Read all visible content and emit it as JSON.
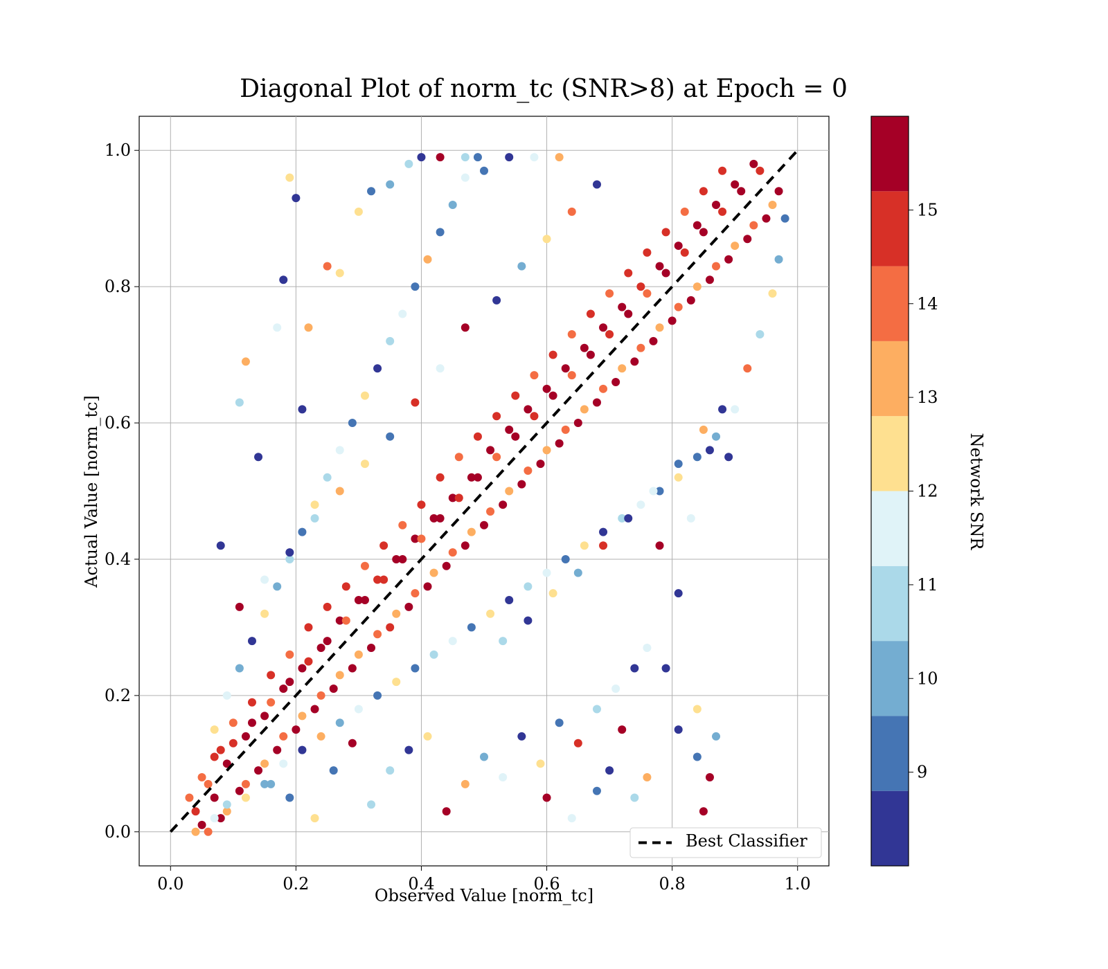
{
  "chart_data": {
    "type": "scatter",
    "title": "Diagonal Plot of norm_tc (SNR>8) at Epoch = 0",
    "xlabel": "Observed Value [norm_tc]",
    "ylabel": "Actual Value [norm_tc]",
    "xlim": [
      -0.05,
      1.05
    ],
    "ylim": [
      -0.05,
      1.05
    ],
    "xticks": [
      "0.0",
      "0.2",
      "0.4",
      "0.6",
      "0.8",
      "1.0"
    ],
    "yticks": [
      "0.0",
      "0.2",
      "0.4",
      "0.6",
      "0.8",
      "1.0"
    ],
    "xtick_values": [
      0.0,
      0.2,
      0.4,
      0.6,
      0.8,
      1.0
    ],
    "ytick_values": [
      0.0,
      0.2,
      0.4,
      0.6,
      0.8,
      1.0
    ],
    "grid": true,
    "legend": {
      "position": "bottom-right",
      "entries": [
        "Best Classifier"
      ]
    },
    "reference_line": {
      "label": "Best Classifier",
      "style": "dashed",
      "color": "#000000",
      "x": [
        0.0,
        1.0
      ],
      "y": [
        0.0,
        1.0
      ]
    },
    "colorbar": {
      "label": "Network SNR",
      "ticks": [
        "9",
        "10",
        "11",
        "12",
        "13",
        "14",
        "15"
      ],
      "tick_values": [
        9,
        10,
        11,
        12,
        13,
        14,
        15
      ],
      "range": [
        8,
        16
      ],
      "colors": [
        "#313695",
        "#4575b4",
        "#74add1",
        "#abd9e9",
        "#e0f3f8",
        "#fee090",
        "#fdae61",
        "#f46d43",
        "#d73027",
        "#a50026"
      ]
    },
    "points": [
      [
        0.05,
        0.01,
        15.9
      ],
      [
        0.07,
        0.05,
        15.7
      ],
      [
        0.09,
        0.1,
        15.5
      ],
      [
        0.12,
        0.14,
        15.6
      ],
      [
        0.15,
        0.17,
        15.8
      ],
      [
        0.18,
        0.21,
        15.4
      ],
      [
        0.21,
        0.24,
        15.9
      ],
      [
        0.24,
        0.27,
        15.2
      ],
      [
        0.27,
        0.31,
        15.7
      ],
      [
        0.3,
        0.34,
        15.8
      ],
      [
        0.33,
        0.37,
        15.1
      ],
      [
        0.36,
        0.4,
        15.9
      ],
      [
        0.39,
        0.43,
        15.4
      ],
      [
        0.42,
        0.46,
        15.8
      ],
      [
        0.45,
        0.49,
        15.6
      ],
      [
        0.48,
        0.52,
        15.9
      ],
      [
        0.51,
        0.56,
        15.2
      ],
      [
        0.54,
        0.59,
        15.8
      ],
      [
        0.57,
        0.62,
        15.7
      ],
      [
        0.6,
        0.65,
        15.9
      ],
      [
        0.63,
        0.68,
        15.3
      ],
      [
        0.66,
        0.71,
        15.8
      ],
      [
        0.69,
        0.74,
        15.6
      ],
      [
        0.72,
        0.77,
        15.9
      ],
      [
        0.75,
        0.8,
        15.1
      ],
      [
        0.78,
        0.83,
        15.8
      ],
      [
        0.81,
        0.86,
        15.6
      ],
      [
        0.84,
        0.89,
        15.9
      ],
      [
        0.87,
        0.92,
        15.4
      ],
      [
        0.9,
        0.95,
        15.8
      ],
      [
        0.93,
        0.98,
        15.7
      ],
      [
        0.04,
        0.03,
        14.7
      ],
      [
        0.06,
        0.07,
        14.3
      ],
      [
        0.08,
        0.12,
        14.6
      ],
      [
        0.1,
        0.16,
        14.1
      ],
      [
        0.13,
        0.19,
        14.8
      ],
      [
        0.16,
        0.23,
        14.5
      ],
      [
        0.19,
        0.26,
        14.2
      ],
      [
        0.22,
        0.3,
        14.7
      ],
      [
        0.25,
        0.33,
        14.4
      ],
      [
        0.28,
        0.36,
        14.8
      ],
      [
        0.31,
        0.39,
        14.3
      ],
      [
        0.34,
        0.42,
        14.6
      ],
      [
        0.37,
        0.45,
        14.2
      ],
      [
        0.4,
        0.48,
        14.7
      ],
      [
        0.43,
        0.52,
        14.5
      ],
      [
        0.46,
        0.55,
        14.1
      ],
      [
        0.49,
        0.58,
        14.8
      ],
      [
        0.52,
        0.61,
        14.4
      ],
      [
        0.55,
        0.64,
        14.6
      ],
      [
        0.58,
        0.67,
        14.2
      ],
      [
        0.61,
        0.7,
        14.8
      ],
      [
        0.64,
        0.73,
        14.3
      ],
      [
        0.67,
        0.76,
        14.7
      ],
      [
        0.7,
        0.79,
        14.2
      ],
      [
        0.73,
        0.82,
        14.6
      ],
      [
        0.76,
        0.85,
        14.4
      ],
      [
        0.79,
        0.88,
        14.8
      ],
      [
        0.82,
        0.91,
        14.1
      ],
      [
        0.85,
        0.94,
        14.7
      ],
      [
        0.88,
        0.97,
        14.5
      ],
      [
        0.06,
        0.0,
        13.8
      ],
      [
        0.09,
        0.03,
        13.2
      ],
      [
        0.12,
        0.07,
        13.6
      ],
      [
        0.15,
        0.1,
        13.4
      ],
      [
        0.18,
        0.14,
        13.7
      ],
      [
        0.21,
        0.17,
        13.1
      ],
      [
        0.24,
        0.2,
        13.8
      ],
      [
        0.27,
        0.23,
        13.5
      ],
      [
        0.3,
        0.26,
        13.2
      ],
      [
        0.33,
        0.29,
        13.6
      ],
      [
        0.36,
        0.32,
        13.3
      ],
      [
        0.39,
        0.35,
        13.8
      ],
      [
        0.42,
        0.38,
        13.4
      ],
      [
        0.45,
        0.41,
        13.7
      ],
      [
        0.48,
        0.44,
        13.2
      ],
      [
        0.51,
        0.47,
        13.6
      ],
      [
        0.54,
        0.5,
        13.5
      ],
      [
        0.57,
        0.53,
        13.8
      ],
      [
        0.6,
        0.56,
        13.1
      ],
      [
        0.63,
        0.59,
        13.7
      ],
      [
        0.66,
        0.62,
        13.4
      ],
      [
        0.69,
        0.65,
        13.8
      ],
      [
        0.72,
        0.68,
        13.2
      ],
      [
        0.75,
        0.71,
        13.6
      ],
      [
        0.78,
        0.74,
        13.5
      ],
      [
        0.81,
        0.77,
        13.8
      ],
      [
        0.84,
        0.8,
        13.1
      ],
      [
        0.87,
        0.83,
        13.7
      ],
      [
        0.9,
        0.86,
        13.4
      ],
      [
        0.93,
        0.89,
        13.6
      ],
      [
        0.96,
        0.92,
        13.3
      ],
      [
        0.08,
        0.02,
        15.6
      ],
      [
        0.11,
        0.06,
        15.2
      ],
      [
        0.14,
        0.09,
        15.8
      ],
      [
        0.17,
        0.12,
        15.5
      ],
      [
        0.2,
        0.15,
        15.7
      ],
      [
        0.23,
        0.18,
        15.3
      ],
      [
        0.26,
        0.21,
        15.8
      ],
      [
        0.29,
        0.24,
        15.4
      ],
      [
        0.32,
        0.27,
        15.7
      ],
      [
        0.35,
        0.3,
        15.1
      ],
      [
        0.38,
        0.33,
        15.9
      ],
      [
        0.41,
        0.36,
        15.5
      ],
      [
        0.44,
        0.39,
        15.6
      ],
      [
        0.47,
        0.42,
        15.3
      ],
      [
        0.5,
        0.45,
        15.8
      ],
      [
        0.53,
        0.48,
        15.4
      ],
      [
        0.56,
        0.51,
        15.7
      ],
      [
        0.59,
        0.54,
        15.2
      ],
      [
        0.62,
        0.57,
        15.8
      ],
      [
        0.65,
        0.6,
        15.5
      ],
      [
        0.68,
        0.63,
        15.6
      ],
      [
        0.71,
        0.66,
        15.3
      ],
      [
        0.74,
        0.69,
        15.8
      ],
      [
        0.77,
        0.72,
        15.4
      ],
      [
        0.8,
        0.75,
        15.7
      ],
      [
        0.83,
        0.78,
        15.2
      ],
      [
        0.86,
        0.81,
        15.8
      ],
      [
        0.89,
        0.84,
        15.5
      ],
      [
        0.92,
        0.87,
        15.6
      ],
      [
        0.95,
        0.9,
        15.3
      ],
      [
        0.97,
        0.94,
        15.8
      ],
      [
        0.03,
        0.05,
        13.9
      ],
      [
        0.05,
        0.08,
        14.2
      ],
      [
        0.07,
        0.11,
        15.1
      ],
      [
        0.1,
        0.13,
        14.4
      ],
      [
        0.13,
        0.16,
        15.5
      ],
      [
        0.16,
        0.19,
        13.9
      ],
      [
        0.19,
        0.22,
        15.3
      ],
      [
        0.22,
        0.25,
        14.8
      ],
      [
        0.25,
        0.28,
        15.6
      ],
      [
        0.28,
        0.31,
        14.1
      ],
      [
        0.31,
        0.34,
        15.2
      ],
      [
        0.34,
        0.37,
        14.6
      ],
      [
        0.37,
        0.4,
        15.8
      ],
      [
        0.4,
        0.43,
        14.3
      ],
      [
        0.43,
        0.46,
        15.4
      ],
      [
        0.46,
        0.49,
        14.9
      ],
      [
        0.49,
        0.52,
        15.7
      ],
      [
        0.52,
        0.55,
        14.2
      ],
      [
        0.55,
        0.58,
        15.5
      ],
      [
        0.58,
        0.61,
        14.7
      ],
      [
        0.61,
        0.64,
        15.3
      ],
      [
        0.64,
        0.67,
        14.1
      ],
      [
        0.67,
        0.7,
        15.6
      ],
      [
        0.7,
        0.73,
        14.8
      ],
      [
        0.73,
        0.76,
        15.4
      ],
      [
        0.76,
        0.79,
        14.3
      ],
      [
        0.79,
        0.82,
        15.7
      ],
      [
        0.82,
        0.85,
        14.5
      ],
      [
        0.85,
        0.88,
        15.2
      ],
      [
        0.88,
        0.91,
        14.9
      ],
      [
        0.91,
        0.94,
        15.8
      ],
      [
        0.94,
        0.97,
        14.6
      ],
      [
        0.04,
        0.0,
        12.9
      ],
      [
        0.07,
        0.02,
        11.8
      ],
      [
        0.09,
        0.04,
        10.7
      ],
      [
        0.12,
        0.05,
        12.2
      ],
      [
        0.15,
        0.07,
        9.9
      ],
      [
        0.18,
        0.1,
        11.6
      ],
      [
        0.21,
        0.12,
        8.6
      ],
      [
        0.24,
        0.14,
        12.8
      ],
      [
        0.27,
        0.16,
        10.3
      ],
      [
        0.3,
        0.18,
        11.4
      ],
      [
        0.33,
        0.2,
        9.2
      ],
      [
        0.36,
        0.22,
        12.4
      ],
      [
        0.39,
        0.24,
        8.9
      ],
      [
        0.42,
        0.26,
        10.9
      ],
      [
        0.45,
        0.28,
        11.7
      ],
      [
        0.48,
        0.3,
        9.6
      ],
      [
        0.51,
        0.32,
        12.5
      ],
      [
        0.54,
        0.34,
        8.4
      ],
      [
        0.57,
        0.36,
        10.8
      ],
      [
        0.6,
        0.38,
        11.3
      ],
      [
        0.63,
        0.4,
        9.5
      ],
      [
        0.66,
        0.42,
        12.1
      ],
      [
        0.69,
        0.44,
        8.7
      ],
      [
        0.72,
        0.46,
        10.6
      ],
      [
        0.75,
        0.48,
        11.9
      ],
      [
        0.78,
        0.5,
        9.4
      ],
      [
        0.81,
        0.52,
        12.6
      ],
      [
        0.84,
        0.55,
        8.8
      ],
      [
        0.87,
        0.58,
        10.2
      ],
      [
        0.9,
        0.62,
        11.5
      ],
      [
        0.07,
        0.15,
        12.7
      ],
      [
        0.09,
        0.2,
        11.6
      ],
      [
        0.11,
        0.24,
        10.1
      ],
      [
        0.13,
        0.28,
        8.5
      ],
      [
        0.15,
        0.32,
        12.2
      ],
      [
        0.17,
        0.36,
        9.8
      ],
      [
        0.19,
        0.4,
        11.2
      ],
      [
        0.21,
        0.44,
        8.9
      ],
      [
        0.23,
        0.48,
        12.5
      ],
      [
        0.25,
        0.52,
        10.4
      ],
      [
        0.27,
        0.56,
        11.7
      ],
      [
        0.29,
        0.6,
        9.1
      ],
      [
        0.31,
        0.64,
        12.1
      ],
      [
        0.33,
        0.68,
        8.6
      ],
      [
        0.35,
        0.72,
        10.7
      ],
      [
        0.37,
        0.76,
        11.5
      ],
      [
        0.39,
        0.8,
        9.4
      ],
      [
        0.41,
        0.84,
        12.8
      ],
      [
        0.43,
        0.88,
        8.8
      ],
      [
        0.45,
        0.92,
        10.3
      ],
      [
        0.47,
        0.96,
        11.4
      ],
      [
        0.49,
        0.99,
        9.6
      ],
      [
        0.14,
        0.55,
        8.3
      ],
      [
        0.18,
        0.81,
        8.5
      ],
      [
        0.19,
        0.96,
        12.4
      ],
      [
        0.2,
        0.93,
        8.2
      ],
      [
        0.22,
        0.74,
        13.5
      ],
      [
        0.25,
        0.83,
        13.9
      ],
      [
        0.3,
        0.91,
        12.6
      ],
      [
        0.35,
        0.95,
        10.2
      ],
      [
        0.38,
        0.98,
        11.1
      ],
      [
        0.4,
        0.99,
        8.4
      ],
      [
        0.43,
        0.99,
        15.8
      ],
      [
        0.47,
        0.99,
        10.4
      ],
      [
        0.5,
        0.97,
        9.5
      ],
      [
        0.54,
        0.99,
        8.6
      ],
      [
        0.58,
        0.99,
        11.3
      ],
      [
        0.62,
        0.99,
        13.1
      ],
      [
        0.12,
        0.69,
        13.4
      ],
      [
        0.11,
        0.63,
        10.5
      ],
      [
        0.17,
        0.74,
        11.8
      ],
      [
        0.21,
        0.62,
        8.1
      ],
      [
        0.27,
        0.82,
        12.5
      ],
      [
        0.32,
        0.94,
        8.8
      ],
      [
        0.6,
        0.05,
        15.9
      ],
      [
        0.64,
        0.02,
        11.4
      ],
      [
        0.68,
        0.06,
        8.9
      ],
      [
        0.72,
        0.15,
        15.8
      ],
      [
        0.76,
        0.27,
        11.7
      ],
      [
        0.79,
        0.24,
        8.6
      ],
      [
        0.81,
        0.15,
        8.3
      ],
      [
        0.84,
        0.11,
        9.2
      ],
      [
        0.86,
        0.08,
        15.9
      ],
      [
        0.85,
        0.03,
        15.8
      ],
      [
        0.87,
        0.14,
        9.8
      ],
      [
        0.78,
        0.42,
        15.7
      ],
      [
        0.81,
        0.35,
        8.1
      ],
      [
        0.83,
        0.46,
        11.9
      ],
      [
        0.86,
        0.56,
        8.4
      ],
      [
        0.89,
        0.55,
        8.2
      ],
      [
        0.84,
        0.18,
        12.6
      ],
      [
        0.76,
        0.08,
        13.2
      ],
      [
        0.74,
        0.05,
        10.4
      ],
      [
        0.7,
        0.09,
        8.7
      ],
      [
        0.16,
        0.07,
        10.2
      ],
      [
        0.19,
        0.05,
        9.1
      ],
      [
        0.23,
        0.02,
        12.7
      ],
      [
        0.26,
        0.09,
        8.8
      ],
      [
        0.29,
        0.13,
        15.4
      ],
      [
        0.32,
        0.04,
        11.2
      ],
      [
        0.35,
        0.09,
        10.7
      ],
      [
        0.38,
        0.12,
        8.5
      ],
      [
        0.41,
        0.14,
        12.3
      ],
      [
        0.44,
        0.03,
        15.7
      ],
      [
        0.47,
        0.07,
        13.2
      ],
      [
        0.5,
        0.11,
        9.8
      ],
      [
        0.53,
        0.08,
        11.9
      ],
      [
        0.56,
        0.14,
        8.3
      ],
      [
        0.59,
        0.1,
        12.2
      ],
      [
        0.62,
        0.16,
        9.6
      ],
      [
        0.65,
        0.13,
        15.1
      ],
      [
        0.68,
        0.18,
        10.9
      ],
      [
        0.71,
        0.21,
        11.8
      ],
      [
        0.74,
        0.24,
        8.4
      ],
      [
        0.47,
        0.74,
        15.9
      ],
      [
        0.52,
        0.78,
        8.6
      ],
      [
        0.56,
        0.83,
        10.2
      ],
      [
        0.6,
        0.87,
        12.7
      ],
      [
        0.64,
        0.91,
        14.2
      ],
      [
        0.68,
        0.95,
        8.3
      ],
      [
        0.43,
        0.68,
        11.6
      ],
      [
        0.39,
        0.63,
        14.8
      ],
      [
        0.35,
        0.58,
        9.3
      ],
      [
        0.31,
        0.54,
        12.2
      ],
      [
        0.27,
        0.5,
        13.5
      ],
      [
        0.23,
        0.46,
        10.8
      ],
      [
        0.19,
        0.41,
        8.7
      ],
      [
        0.15,
        0.37,
        11.4
      ],
      [
        0.11,
        0.33,
        15.2
      ],
      [
        0.08,
        0.42,
        8.4
      ],
      [
        0.53,
        0.28,
        10.8
      ],
      [
        0.57,
        0.31,
        8.3
      ],
      [
        0.61,
        0.35,
        12.4
      ],
      [
        0.65,
        0.38,
        9.7
      ],
      [
        0.69,
        0.42,
        14.5
      ],
      [
        0.73,
        0.46,
        8.5
      ],
      [
        0.77,
        0.5,
        11.6
      ],
      [
        0.81,
        0.54,
        9.2
      ],
      [
        0.85,
        0.59,
        12.8
      ],
      [
        0.88,
        0.62,
        8.1
      ],
      [
        0.92,
        0.68,
        13.8
      ],
      [
        0.94,
        0.73,
        11.1
      ],
      [
        0.96,
        0.79,
        12.1
      ],
      [
        0.97,
        0.84,
        10.3
      ],
      [
        0.98,
        0.9,
        9.4
      ]
    ]
  }
}
